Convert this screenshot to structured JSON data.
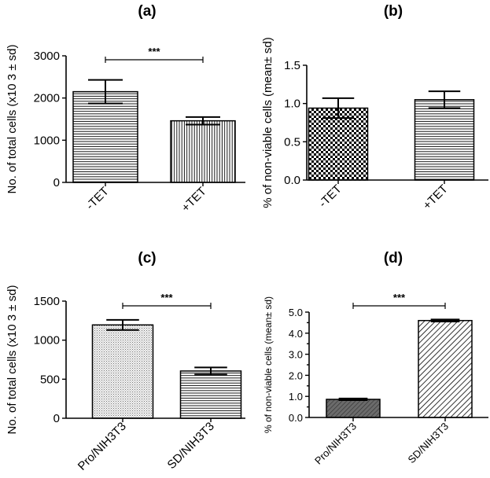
{
  "chart_data": [
    {
      "type": "bar",
      "title": "(a)",
      "ylabel": "No. of total cells (x10 3 ± sd)",
      "xlabel": "",
      "categories": [
        "-TET",
        "+TET"
      ],
      "values": [
        2150,
        1460
      ],
      "errors": [
        280,
        90
      ],
      "ylim": [
        0,
        3000
      ],
      "yticks": [
        0,
        1000,
        2000,
        3000
      ],
      "ytick_labels": [
        "0",
        "1000",
        "2000",
        "3000"
      ],
      "patterns": [
        "horizontal-lines",
        "vertical-lines"
      ],
      "significance": {
        "between": [
          0,
          1
        ],
        "label": "***"
      }
    },
    {
      "type": "bar",
      "title": "(b)",
      "ylabel": "% of non-viable cells (mean± sd)",
      "xlabel": "",
      "categories": [
        "-TET",
        "+TET"
      ],
      "values": [
        0.94,
        1.05
      ],
      "errors": [
        0.13,
        0.11
      ],
      "ylim": [
        0,
        1.5
      ],
      "yticks": [
        0,
        0.5,
        1.0,
        1.5
      ],
      "ytick_labels": [
        "0.0",
        "0.5",
        "1.0",
        "1.5"
      ],
      "patterns": [
        "checkerboard",
        "horizontal-lines"
      ],
      "significance": null
    },
    {
      "type": "bar",
      "title": "(c)",
      "ylabel": "No. of total cells (x10 3 ± sd)",
      "xlabel": "",
      "categories": [
        "Pro/NIH3T3",
        "SD/NIH3T3"
      ],
      "values": [
        1195,
        605
      ],
      "errors": [
        65,
        45
      ],
      "ylim": [
        0,
        1500
      ],
      "yticks": [
        0,
        500,
        1000,
        1500
      ],
      "ytick_labels": [
        "0",
        "500",
        "1000",
        "1500"
      ],
      "patterns": [
        "dots",
        "horizontal-lines"
      ],
      "significance": {
        "between": [
          0,
          1
        ],
        "label": "***"
      }
    },
    {
      "type": "bar",
      "title": "(d)",
      "ylabel": "% of non-viable cells (mean± sd)",
      "xlabel": "",
      "categories": [
        "Pro/NIH3T3",
        "SD/NIH3T3"
      ],
      "values": [
        0.86,
        4.6
      ],
      "errors": [
        0.04,
        0.05
      ],
      "ylim": [
        0,
        5
      ],
      "yticks": [
        0,
        0.5,
        1,
        1.5,
        2,
        2.5,
        3,
        3.5,
        4,
        4.5,
        5
      ],
      "ytick_labels": [
        "0.0",
        "",
        "1.0",
        "",
        "2.0",
        "",
        "3.0",
        "",
        "4.0",
        "",
        "5.0"
      ],
      "patterns": [
        "dark-diagonal",
        "diagonal"
      ],
      "significance": {
        "between": [
          0,
          1
        ],
        "label": "***"
      }
    }
  ]
}
